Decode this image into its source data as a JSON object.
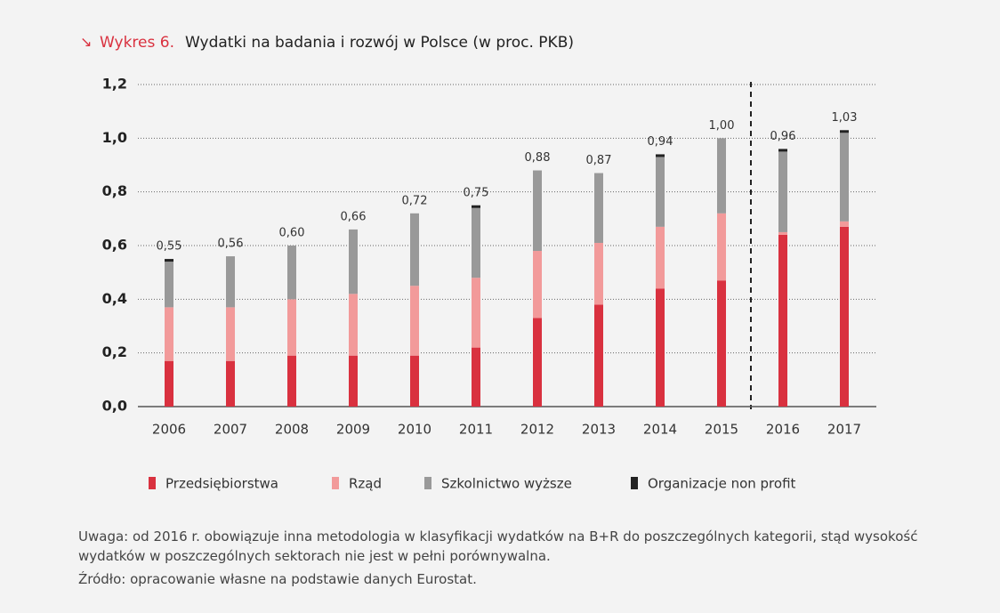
{
  "chart_data": {
    "type": "stacked-bar",
    "title_label": "Wykres 6.",
    "title": "Wydatki na badania i rozwój w Polsce (w proc. PKB)",
    "categories": [
      "2006",
      "2007",
      "2008",
      "2009",
      "2010",
      "2011",
      "2012",
      "2013",
      "2014",
      "2015",
      "2016",
      "2017"
    ],
    "series": [
      {
        "name": "Przedsiębiorstwa",
        "color": "#d9313f",
        "values": [
          0.17,
          0.17,
          0.19,
          0.19,
          0.19,
          0.22,
          0.33,
          0.38,
          0.44,
          0.47,
          0.64,
          0.67
        ]
      },
      {
        "name": "Rząd",
        "color": "#f29a9a",
        "values": [
          0.2,
          0.2,
          0.21,
          0.23,
          0.26,
          0.26,
          0.25,
          0.23,
          0.23,
          0.25,
          0.01,
          0.02
        ]
      },
      {
        "name": "Szkolnictwo wyższe",
        "color": "#999999",
        "values": [
          0.17,
          0.19,
          0.2,
          0.24,
          0.27,
          0.26,
          0.3,
          0.26,
          0.26,
          0.28,
          0.3,
          0.33
        ]
      },
      {
        "name": "Organizacje non profit",
        "color": "#222222",
        "values": [
          0.01,
          0,
          0,
          0,
          0,
          0.01,
          0,
          0,
          0.01,
          0,
          0.01,
          0.01
        ]
      }
    ],
    "totals": {
      "values": [
        0.55,
        0.56,
        0.6,
        0.66,
        0.72,
        0.75,
        0.88,
        0.87,
        0.94,
        1.0,
        0.96,
        1.03
      ],
      "value_labels": [
        "0,55",
        "0,56",
        "0,60",
        "0,66",
        "0,72",
        "0,75",
        "0,88",
        "0,87",
        "0,94",
        "1,00",
        "0,96",
        "1,03"
      ]
    },
    "ylim": [
      0,
      1.2
    ],
    "yticks": [
      {
        "value": 0,
        "label": "0,0"
      },
      {
        "value": 0.2,
        "label": "0,2"
      },
      {
        "value": 0.4,
        "label": "0,4"
      },
      {
        "value": 0.6,
        "label": "0,6"
      },
      {
        "value": 0.8,
        "label": "0,8"
      },
      {
        "value": 1,
        "label": "1,0"
      },
      {
        "value": 1.2,
        "label": "1,2"
      }
    ],
    "grid": true,
    "note": "Uwaga: od 2016 r. obowiązuje inna metodologia w klasyfikacji wydatków na B+R do poszczególnych kategorii, stąd wysokość wydatków w poszczególnych sektorach nie jest w pełni porównywalna.",
    "source": "Źródło: opracowanie własne na podstawie danych Eurostat."
  }
}
